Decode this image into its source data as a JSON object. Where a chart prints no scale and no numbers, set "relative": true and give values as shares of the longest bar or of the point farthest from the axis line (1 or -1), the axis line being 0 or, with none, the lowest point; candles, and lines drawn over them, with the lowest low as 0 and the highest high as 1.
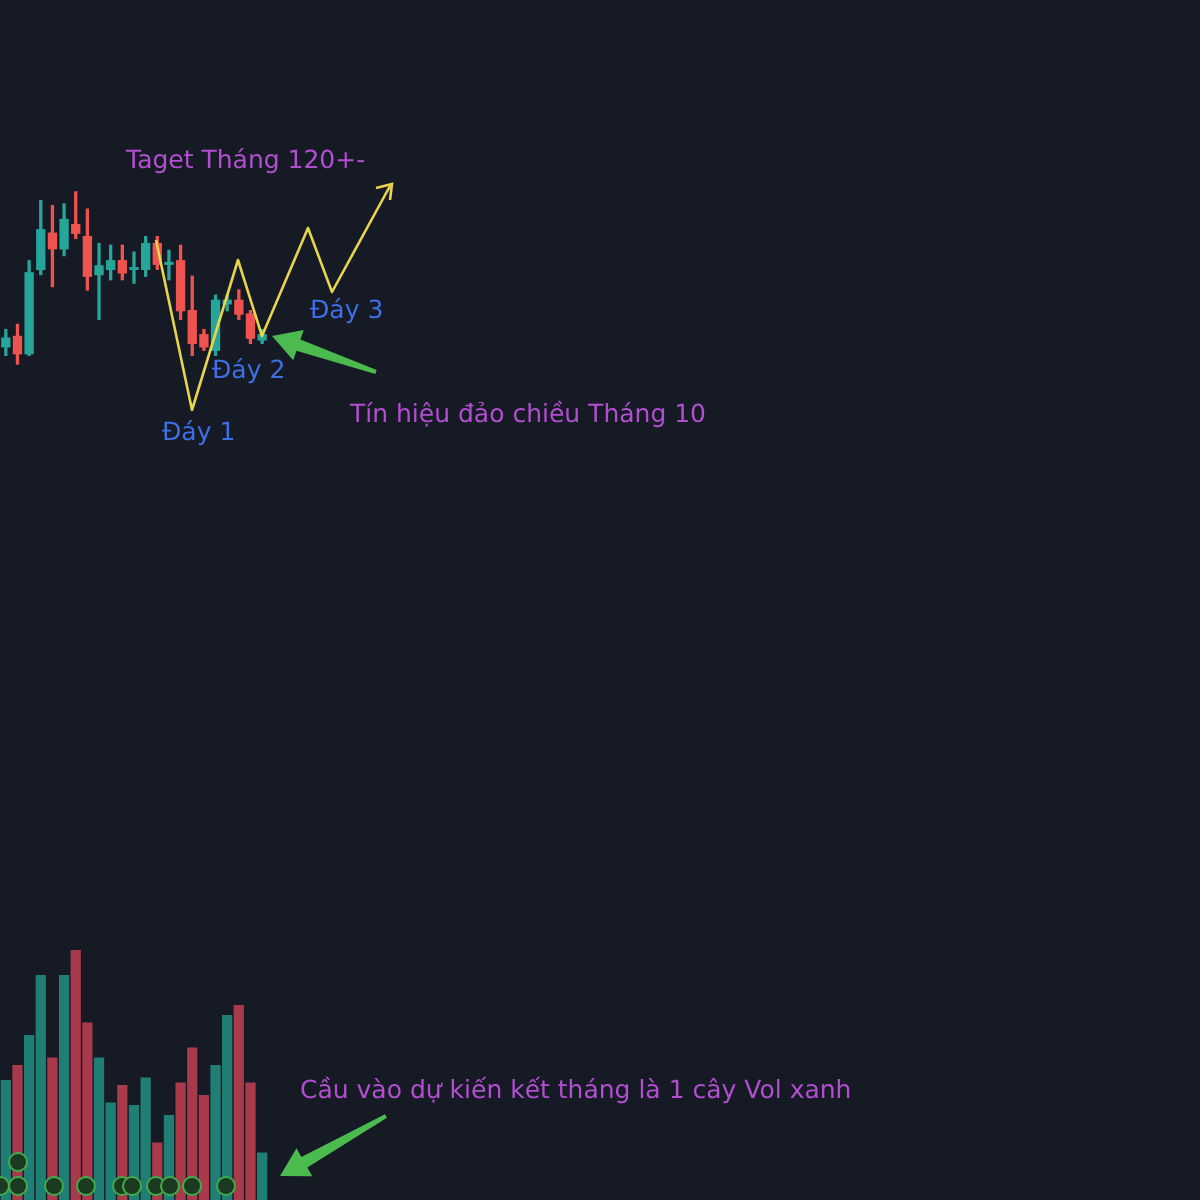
{
  "chart_data": [
    {
      "type": "candlestick",
      "relative": true,
      "categories": [
        null,
        null,
        null,
        null,
        null,
        null,
        null,
        null,
        null,
        null,
        null,
        null,
        null,
        null,
        null,
        null,
        null,
        null,
        null,
        null,
        null,
        null,
        null,
        null,
        null,
        null,
        null,
        null,
        null,
        null,
        null,
        null,
        null,
        null,
        null,
        null,
        null,
        null,
        null,
        null,
        null,
        null,
        null,
        null,
        null,
        null,
        null,
        null,
        null,
        null,
        null,
        null,
        null,
        null,
        null,
        null,
        null,
        null,
        null,
        null,
        null,
        null,
        null,
        null,
        null,
        null,
        null,
        null,
        null,
        null,
        null,
        null,
        null,
        null,
        null,
        null,
        null,
        null,
        null,
        null,
        null,
        null,
        null,
        null,
        null,
        null,
        null,
        null,
        null,
        null,
        null,
        null,
        null,
        null,
        null,
        null,
        null,
        null,
        null,
        null,
        null,
        null,
        null
      ],
      "ohlc": [
        [
          0.1,
          0.2,
          0.05,
          0.15
        ],
        [
          0.16,
          0.23,
          0,
          0.06
        ],
        [
          0.06,
          0.6,
          0.05,
          0.53
        ],
        [
          0.55,
          0.95,
          0.52,
          0.78
        ],
        [
          0.76,
          0.92,
          0.45,
          0.67
        ],
        [
          0.67,
          0.93,
          0.63,
          0.84
        ],
        [
          0.81,
          1,
          0.73,
          0.76
        ],
        [
          0.74,
          0.9,
          0.43,
          0.51
        ],
        [
          0.52,
          0.7,
          0.26,
          0.57
        ],
        [
          0.55,
          0.69,
          0.49,
          0.6
        ],
        [
          0.6,
          0.69,
          0.49,
          0.53
        ],
        [
          0.55,
          0.65,
          0.47,
          0.56
        ],
        [
          0.55,
          0.74,
          0.51,
          0.7
        ],
        [
          0.7,
          0.74,
          0.55,
          0.58
        ],
        [
          0.58,
          0.66,
          0.49,
          0.59
        ],
        [
          0.6,
          0.69,
          0.26,
          0.31
        ],
        [
          0.31,
          0.51,
          0.05,
          0.12
        ],
        [
          0.17,
          0.2,
          0.08,
          0.1
        ],
        [
          0.08,
          0.4,
          0.05,
          0.37
        ],
        [
          0.35,
          0.4,
          0.31,
          0.37
        ],
        [
          0.37,
          0.43,
          0.26,
          0.29
        ],
        [
          0.29,
          0.31,
          0.12,
          0.15
        ],
        [
          0.14,
          0.2,
          0.12,
          0.17
        ],
        null,
        null,
        null,
        null,
        null,
        null,
        null,
        null,
        null,
        null,
        null,
        null,
        null,
        null,
        null,
        null,
        null,
        null,
        null,
        null,
        null,
        null,
        null,
        null,
        null,
        null,
        null,
        null,
        null,
        null,
        null,
        null,
        null,
        null,
        null,
        null,
        null,
        null,
        null,
        null,
        null,
        null,
        null,
        null,
        null,
        null,
        null,
        null,
        null,
        null,
        null,
        null,
        null,
        null,
        null,
        null,
        null,
        null,
        null,
        null,
        null,
        null,
        null,
        null,
        null,
        null,
        null,
        null,
        null,
        null,
        null,
        null,
        null,
        null,
        null,
        null,
        null,
        null,
        null,
        null
      ],
      "colors": [
        "#26a69a",
        "#ef5350",
        "#26a69a",
        "#26a69a",
        "#ef5350",
        "#26a69a",
        "#ef5350",
        "#ef5350",
        "#26a69a",
        "#26a69a",
        "#ef5350",
        "#26a69a",
        "#26a69a",
        "#ef5350",
        "#26a69a",
        "#ef5350",
        "#ef5350",
        "#ef5350",
        "#26a69a",
        "#26a69a",
        "#ef5350",
        "#ef5350",
        "#26a69a",
        null,
        null,
        null,
        null,
        null,
        null,
        null,
        null,
        null,
        null,
        null,
        null,
        null,
        null,
        null,
        null,
        null,
        null,
        null,
        null,
        null,
        null,
        null,
        null,
        null,
        null,
        null,
        null,
        null,
        null,
        null,
        null,
        null,
        null,
        null,
        null,
        null,
        null,
        null,
        null,
        null,
        null,
        null,
        null,
        null,
        null,
        null,
        null,
        null,
        null,
        null,
        null,
        null,
        null,
        null,
        null,
        null,
        null,
        null,
        null,
        null,
        null,
        null,
        null,
        null,
        null,
        null,
        null,
        null,
        null,
        null,
        null,
        null,
        null,
        null,
        null,
        null,
        null,
        null,
        null
      ],
      "annotations": [
        "Taget Tháng 120+-",
        "Đáy 1",
        "Đáy 2",
        "Đáy 3",
        "Tín hiệu đảo chiều Tháng 10"
      ]
    },
    {
      "type": "bar",
      "relative": true,
      "categories": [
        null,
        null,
        null,
        null,
        null,
        null,
        null,
        null,
        null,
        null,
        null,
        null,
        null,
        null,
        null,
        null,
        null,
        null,
        null,
        null,
        null,
        null,
        null,
        null,
        null,
        null,
        null,
        null,
        null,
        null,
        null,
        null,
        null,
        null,
        null,
        null,
        null,
        null,
        null,
        null,
        null,
        null,
        null,
        null,
        null,
        null,
        null,
        null,
        null,
        null,
        null,
        null,
        null,
        null,
        null,
        null,
        null,
        null,
        null,
        null,
        null,
        null,
        null,
        null,
        null,
        null,
        null,
        null,
        null,
        null,
        null,
        null,
        null,
        null,
        null,
        null,
        null,
        null,
        null,
        null,
        null,
        null,
        null,
        null,
        null,
        null,
        null,
        null,
        null,
        null,
        null,
        null,
        null,
        null,
        null,
        null,
        null,
        null,
        null,
        null,
        null,
        null,
        null
      ],
      "values": [
        0.48,
        0.54,
        0.66,
        0.9,
        0.57,
        0.9,
        1,
        0.71,
        0.57,
        0.39,
        0.46,
        0.38,
        0.49,
        0.23,
        0.34,
        0.47,
        0.61,
        0.42,
        0.54,
        0.74,
        0.78,
        0.47,
        0.19,
        null,
        null,
        null,
        null,
        null,
        null,
        null,
        null,
        null,
        null,
        null,
        null,
        null,
        null,
        null,
        null,
        null,
        null,
        null,
        null,
        null,
        null,
        null,
        null,
        null,
        null,
        null,
        null,
        null,
        null,
        null,
        null,
        null,
        null,
        null,
        null,
        null,
        null,
        null,
        null,
        null,
        null,
        null,
        null,
        null,
        null,
        null,
        null,
        null,
        null,
        null,
        null,
        null,
        null,
        null,
        null,
        null,
        null,
        null,
        null,
        null,
        null,
        null,
        null,
        null,
        null,
        null,
        null,
        null,
        null,
        null,
        null,
        null,
        null,
        null,
        null,
        null,
        null,
        null,
        null
      ],
      "colors": [
        "#1f7f74",
        "#a83a4c",
        "#1f7f74",
        "#1f7f74",
        "#a83a4c",
        "#1f7f74",
        "#a83a4c",
        "#a83a4c",
        "#1f7f74",
        "#1f7f74",
        "#a83a4c",
        "#1f7f74",
        "#1f7f74",
        "#a83a4c",
        "#1f7f74",
        "#a83a4c",
        "#a83a4c",
        "#a83a4c",
        "#1f7f74",
        "#1f7f74",
        "#a83a4c",
        "#a83a4c",
        "#1f7f74",
        null,
        null,
        null,
        null,
        null,
        null,
        null,
        null,
        null,
        null,
        null,
        null,
        null,
        null,
        null,
        null,
        null,
        null,
        null,
        null,
        null,
        null,
        null,
        null,
        null,
        null,
        null,
        null,
        null,
        null,
        null,
        null,
        null,
        null,
        null,
        null,
        null,
        null,
        null,
        null,
        null,
        null,
        null,
        null,
        null,
        null,
        null,
        null,
        null,
        null,
        null,
        null,
        null,
        null,
        null,
        null,
        null,
        null,
        null,
        null,
        null,
        null,
        null,
        null,
        null,
        null,
        null,
        null,
        null,
        null,
        null,
        null,
        null,
        null,
        null,
        null,
        null,
        null,
        null,
        null
      ],
      "annotations": [
        "Cầu vào dự kiến kết tháng là 1 cây Vol xanh"
      ]
    }
  ]
}
